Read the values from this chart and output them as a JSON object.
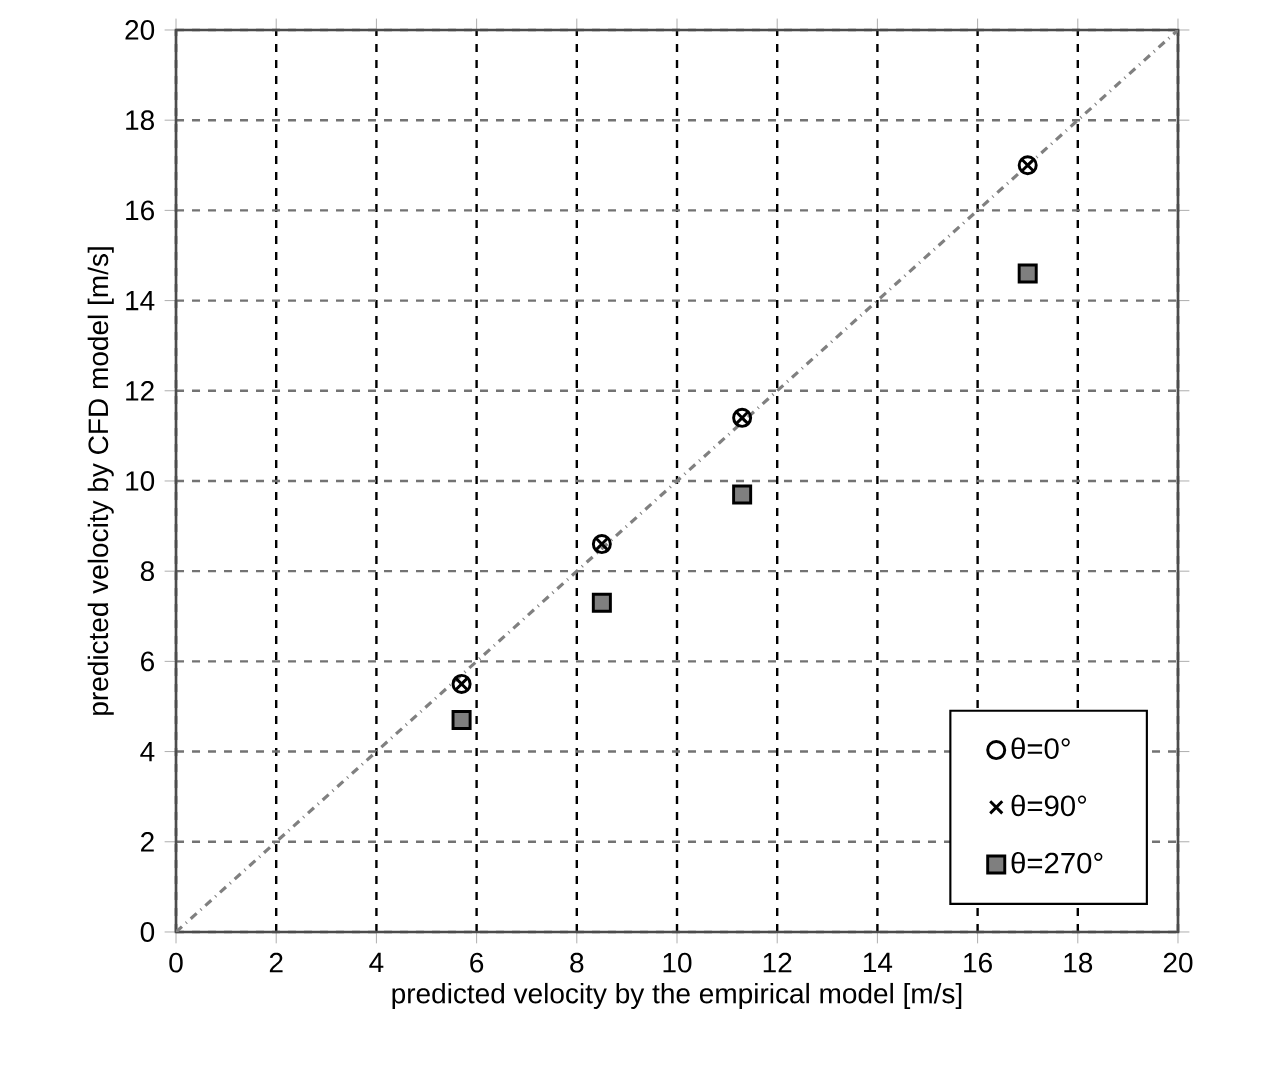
{
  "chart_data": {
    "type": "scatter",
    "xlabel": "predicted velocity by the empirical model [m/s]",
    "ylabel": "predicted velocity by CFD model [m/s]",
    "xlim": [
      0,
      20
    ],
    "ylim": [
      0,
      20
    ],
    "xticks": [
      0,
      2,
      4,
      6,
      8,
      10,
      12,
      14,
      16,
      18,
      20
    ],
    "yticks": [
      0,
      2,
      4,
      6,
      8,
      10,
      12,
      14,
      16,
      18,
      20
    ],
    "grid": true,
    "legend": "bottom right",
    "series": [
      {
        "name": "θ=0°",
        "color": "#000000",
        "marker": "circle",
        "x": [
          5.7,
          8.5,
          11.3,
          17.0
        ],
        "values": [
          5.5,
          8.6,
          11.4,
          17.0
        ]
      },
      {
        "name": "θ=90°",
        "color": "#000000",
        "marker": "cross",
        "x": [
          5.7,
          8.5,
          11.3,
          17.0
        ],
        "values": [
          5.5,
          8.6,
          11.4,
          17.0
        ]
      },
      {
        "name": "θ=270°",
        "color": "#7f7f7f",
        "marker": "square",
        "x": [
          5.7,
          8.5,
          11.3,
          17.0
        ],
        "values": [
          4.7,
          7.3,
          9.7,
          14.6
        ]
      },
      {
        "type": "line",
        "color": "#808080",
        "line_style": "dashed",
        "marker": "none",
        "x": [
          0,
          20
        ],
        "values": [
          0,
          20
        ]
      }
    ]
  }
}
